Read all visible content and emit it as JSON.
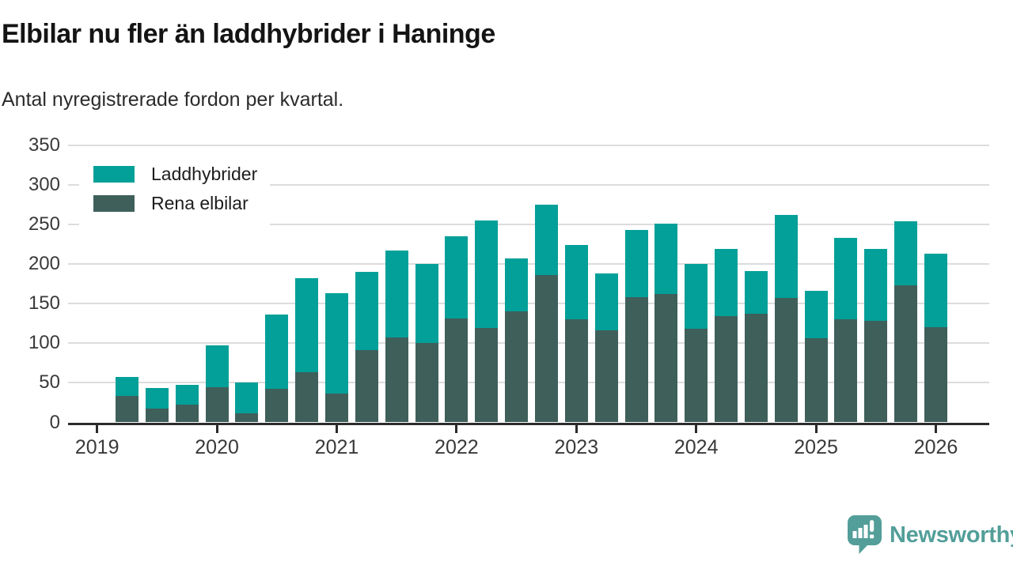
{
  "header": {
    "title": "Elbilar nu fler än laddhybrider i Haninge",
    "subtitle": "Antal nyregistrerade fordon per kvartal."
  },
  "legend": {
    "items": [
      {
        "label": "Laddhybrider",
        "color": "#02a099"
      },
      {
        "label": "Rena elbilar",
        "color": "#3f5f5a"
      }
    ]
  },
  "chart_data": {
    "type": "bar",
    "stacked": true,
    "title": "Elbilar nu fler än laddhybrider i Haninge",
    "subtitle": "Antal nyregistrerade fordon per kvartal.",
    "xlabel": "",
    "ylabel": "",
    "ylim": [
      0,
      350
    ],
    "y_ticks": [
      0,
      50,
      100,
      150,
      200,
      250,
      300,
      350
    ],
    "grid": true,
    "legend_position": "top-left",
    "x_unit": "quarter",
    "categories": [
      "2019-Q2",
      "2019-Q3",
      "2019-Q4",
      "2020-Q1",
      "2020-Q2",
      "2020-Q3",
      "2020-Q4",
      "2021-Q1",
      "2021-Q2",
      "2021-Q3",
      "2021-Q4",
      "2022-Q1",
      "2022-Q2",
      "2022-Q3",
      "2022-Q4",
      "2023-Q1",
      "2023-Q2",
      "2023-Q3",
      "2023-Q4",
      "2024-Q1",
      "2024-Q2",
      "2024-Q3",
      "2024-Q4",
      "2025-Q1",
      "2025-Q2",
      "2025-Q3",
      "2025-Q4",
      "2026-Q1"
    ],
    "series": [
      {
        "name": "Rena elbilar",
        "color": "#3f5f5a",
        "stack_position": "bottom",
        "values": [
          33,
          17,
          22,
          44,
          11,
          42,
          63,
          36,
          91,
          107,
          100,
          131,
          119,
          140,
          186,
          130,
          116,
          158,
          162,
          118,
          134,
          137,
          157,
          106,
          130,
          128,
          173,
          120
        ]
      },
      {
        "name": "Laddhybrider",
        "color": "#02a099",
        "stack_position": "top",
        "values": [
          24,
          26,
          25,
          53,
          39,
          94,
          119,
          127,
          99,
          110,
          100,
          104,
          136,
          67,
          89,
          94,
          72,
          85,
          89,
          82,
          85,
          54,
          105,
          60,
          103,
          91,
          81,
          93
        ]
      }
    ],
    "stacked_totals": [
      57,
      43,
      47,
      97,
      50,
      136,
      182,
      163,
      190,
      217,
      200,
      235,
      255,
      207,
      275,
      224,
      188,
      243,
      251,
      200,
      219,
      191,
      262,
      166,
      233,
      219,
      254,
      213
    ],
    "year_labels": [
      "2019",
      "2020",
      "2021",
      "2022",
      "2023",
      "2024",
      "2025",
      "2026"
    ]
  },
  "branding": {
    "logo_text": "Newsworthy",
    "color": "#539e99"
  }
}
